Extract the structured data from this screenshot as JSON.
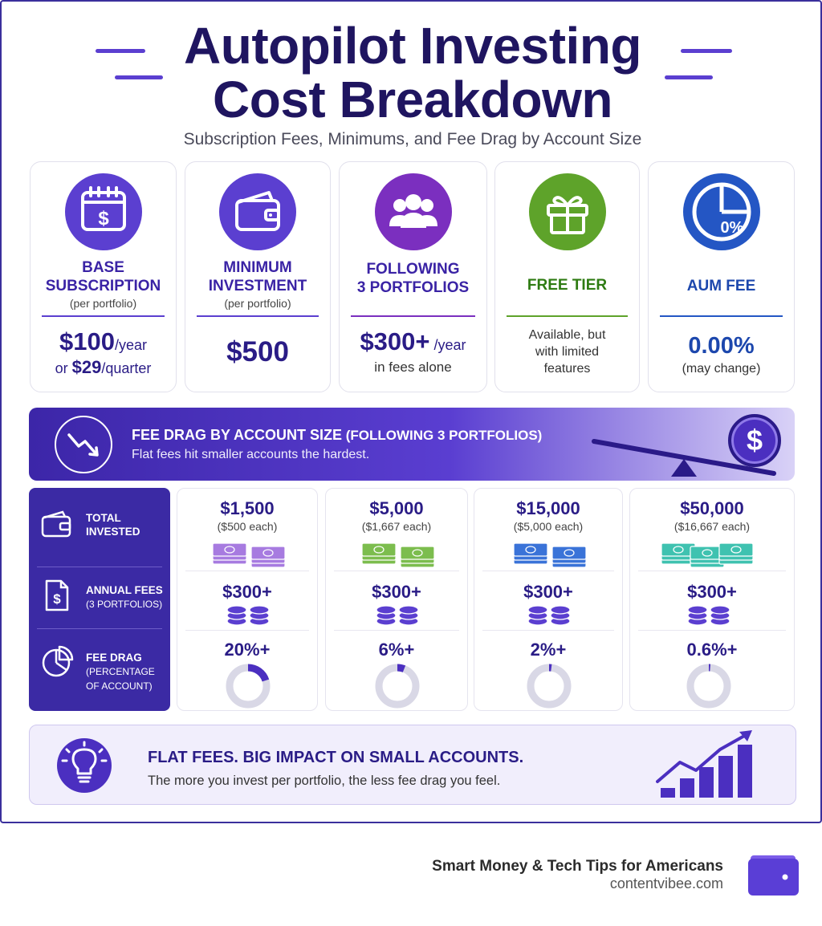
{
  "title": {
    "line1": "Autopilot Investing",
    "line2": "Cost Breakdown"
  },
  "subtitle": "Subscription Fees, Minimums, and Fee Drag by Account Size",
  "colors": {
    "navy": "#1f1560",
    "purple": "#5b3fd0",
    "green": "#5ea32a",
    "blue": "#2456c4",
    "violet": "#7b2fbf"
  },
  "cards": [
    {
      "icon": "calendar-dollar-icon",
      "title_lines": [
        "BASE",
        "SUBSCRIPTION"
      ],
      "sub": "(per portfolio)",
      "value1": "$100",
      "unit1": "/year",
      "prefix2": "or ",
      "value2": "$29",
      "unit2": "/quarter"
    },
    {
      "icon": "wallet-icon",
      "title_lines": [
        "MINIMUM",
        "INVESTMENT"
      ],
      "sub": "(per portfolio)",
      "value": "$500"
    },
    {
      "icon": "people-group-icon",
      "title_lines": [
        "FOLLOWING",
        "3 PORTFOLIOS"
      ],
      "value": "$300+",
      "unit": " /year",
      "note": "in fees alone"
    },
    {
      "icon": "gift-icon",
      "title": "FREE TIER",
      "note_lines": [
        "Available, but",
        "with limited",
        "features"
      ]
    },
    {
      "icon": "pie-chart-icon",
      "icon_text": "0%",
      "title": "AUM FEE",
      "value": "0.00%",
      "note": "(may change)"
    }
  ],
  "banner": {
    "title_bold": "FEE DRAG BY ACCOUNT SIZE",
    "title_rest": " (FOLLOWING 3 PORTFOLIOS)",
    "sub": "Flat fees hit smaller accounts the hardest.",
    "icon": "trend-down-icon",
    "coin_icon": "dollar-coin-icon",
    "coin_text": "$"
  },
  "row_labels": [
    {
      "icon": "wallet-icon",
      "lines": [
        "TOTAL",
        "INVESTED"
      ]
    },
    {
      "icon": "dollar-document-icon",
      "text_icon": "$",
      "line": "ANNUAL FEES",
      "sub": "(3 PORTFOLIOS)"
    },
    {
      "icon": "pie-chart-icon",
      "line": "FEE DRAG",
      "sub_lines": [
        "(PERCENTAGE",
        "OF ACCOUNT)"
      ]
    }
  ],
  "columns": [
    {
      "total": "$1,500",
      "each": "($500 each)",
      "fee": "$300+",
      "drag": "20%+",
      "drag_fraction": 0.2,
      "cash_color": "#a77be0"
    },
    {
      "total": "$5,000",
      "each": "($1,667 each)",
      "fee": "$300+",
      "drag": "6%+",
      "drag_fraction": 0.06,
      "cash_color": "#7cbd4e"
    },
    {
      "total": "$15,000",
      "each": "($5,000 each)",
      "fee": "$300+",
      "drag": "2%+",
      "drag_fraction": 0.02,
      "cash_color": "#3a73d8"
    },
    {
      "total": "$50,000",
      "each": "($16,667 each)",
      "fee": "$300+",
      "drag": "0.6%+",
      "drag_fraction": 0.006,
      "cash_color": "#3fc2b0"
    }
  ],
  "callout": {
    "icon": "lightbulb-icon",
    "title": "FLAT FEES. BIG IMPACT ON SMALL ACCOUNTS.",
    "sub": "The more you invest per portfolio, the less fee drag you feel.",
    "chart_icon": "growth-bars-icon"
  },
  "footer": {
    "title": "Smart Money & Tech Tips for Americans",
    "site": "contentvibee.com",
    "logo_icon": "wallet-icon"
  }
}
